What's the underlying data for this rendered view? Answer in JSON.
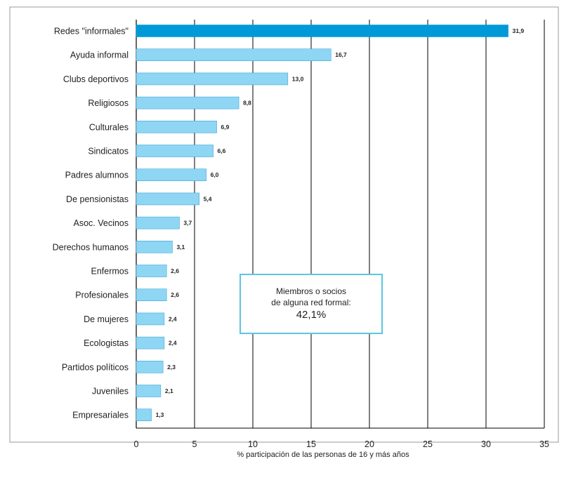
{
  "chart_data": {
    "type": "bar",
    "orientation": "horizontal",
    "categories": [
      "Redes \"informales\"",
      "Ayuda informal",
      "Clubs deportivos",
      "Religiosos",
      "Culturales",
      "Sindicatos",
      "Padres alumnos",
      "De pensionistas",
      "Asoc. Vecinos",
      "Derechos humanos",
      "Enfermos",
      "Profesionales",
      "De mujeres",
      "Ecologistas",
      "Partidos políticos",
      "Juveniles",
      "Empresariales"
    ],
    "values": [
      31.9,
      16.7,
      13.0,
      8.8,
      6.9,
      6.6,
      6.0,
      5.4,
      3.7,
      3.1,
      2.6,
      2.6,
      2.4,
      2.4,
      2.3,
      2.1,
      1.3
    ],
    "value_labels": [
      "31,9",
      "16,7",
      "13,0",
      "8,8",
      "6,9",
      "6,6",
      "6,0",
      "5,4",
      "3,7",
      "3,1",
      "2,6",
      "2,6",
      "2,4",
      "2,4",
      "2,3",
      "2,1",
      "1,3"
    ],
    "xlabel": "% participación de las personas de 16 y más años",
    "xlim": [
      0,
      35
    ],
    "xticks": [
      0,
      5,
      10,
      15,
      20,
      25,
      30,
      35
    ],
    "grid": "vertical",
    "colors": {
      "highlight": "#0099d8",
      "bar": "#8fd6f4",
      "bar_edge": "#3fa6d6",
      "grid": "#000000",
      "annotation_border": "#5bc6df"
    },
    "highlight_index": 0,
    "annotation": {
      "line1": "Miembros o socios",
      "line2": "de alguna red formal:",
      "value": "42,1%"
    }
  }
}
